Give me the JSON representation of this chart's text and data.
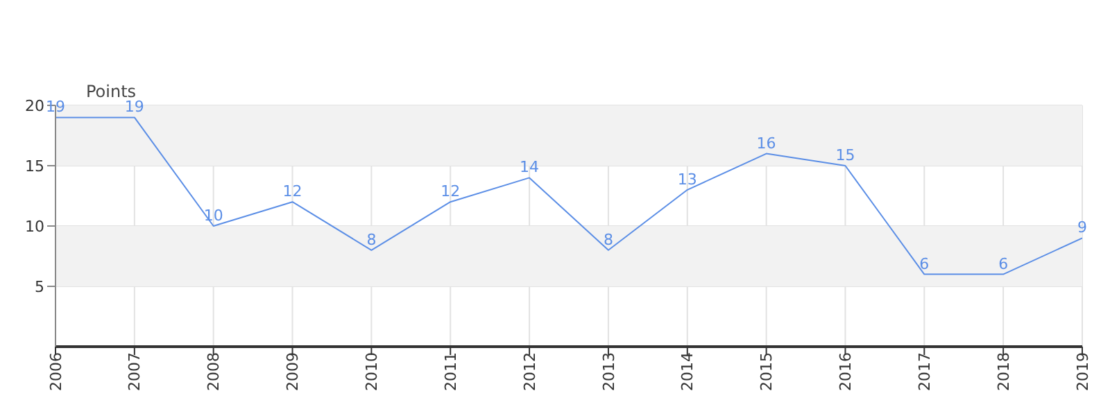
{
  "chart_data": {
    "type": "line",
    "ylabel": "Points",
    "categories": [
      "2006",
      "2007",
      "2008",
      "2009",
      "2010",
      "2011",
      "2012",
      "2013",
      "2014",
      "2015",
      "2016",
      "2017",
      "2018",
      "2019"
    ],
    "series": [
      {
        "color": "#5b8ee6",
        "values": [
          19,
          19,
          10,
          12,
          8,
          12,
          14,
          8,
          13,
          16,
          15,
          6,
          6,
          9
        ]
      }
    ],
    "ylim": [
      0,
      20
    ],
    "yticks": [
      5,
      10,
      15,
      20
    ],
    "grid": true,
    "data_labels": true,
    "marker": "none",
    "line_style": "solid",
    "bands": [
      {
        "axis": "y",
        "from": 5,
        "to": 10,
        "color": "#f2f2f2"
      },
      {
        "axis": "y",
        "from": 15,
        "to": 20,
        "color": "#f2f2f2"
      }
    ]
  }
}
